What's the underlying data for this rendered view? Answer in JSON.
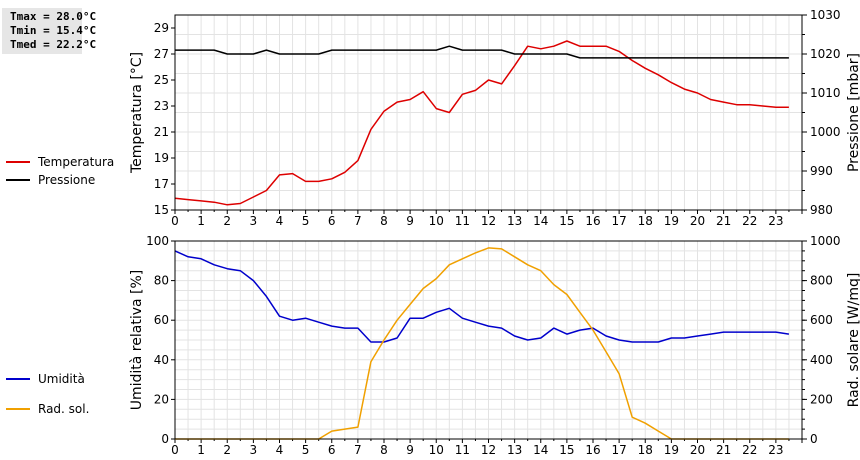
{
  "stats": {
    "tmax": "Tmax = 28.0°C",
    "tmin": "Tmin = 15.4°C",
    "tmed": "Tmed = 22.2°C"
  },
  "chart_data": [
    {
      "type": "line",
      "ylabel_left": "Temperatura [°C]",
      "ylabel_right": "Pressione [mbar]",
      "xticks": [
        "0",
        "1",
        "2",
        "3",
        "4",
        "5",
        "6",
        "7",
        "8",
        "9",
        "10",
        "11",
        "12",
        "13",
        "14",
        "15",
        "16",
        "17",
        "18",
        "19",
        "20",
        "21",
        "22",
        "23"
      ],
      "xlim": [
        0,
        24
      ],
      "ylim_left": [
        15,
        30
      ],
      "ylim_right": [
        980,
        1030
      ],
      "yticks_left": [
        15,
        17,
        19,
        21,
        23,
        25,
        27,
        29
      ],
      "yticks_right": [
        980,
        990,
        1000,
        1010,
        1020,
        1030
      ],
      "grid": true,
      "legend_placement": "left",
      "series": [
        {
          "name": "Temperatura",
          "color": "#dd0000",
          "axis": "left",
          "x": [
            0,
            0.5,
            1,
            1.5,
            2,
            2.5,
            3,
            3.5,
            4,
            4.5,
            5,
            5.5,
            6,
            6.5,
            7,
            7.5,
            8,
            8.5,
            9,
            9.5,
            10,
            10.5,
            11,
            11.5,
            12,
            12.5,
            13,
            13.5,
            14,
            14.5,
            15,
            15.5,
            16,
            16.5,
            17,
            17.5,
            18,
            18.5,
            19,
            19.5,
            20,
            20.5,
            21,
            21.5,
            22,
            22.5,
            23,
            23.5
          ],
          "values": [
            15.9,
            15.8,
            15.7,
            15.6,
            15.4,
            15.5,
            16.0,
            16.5,
            17.7,
            17.8,
            17.2,
            17.2,
            17.4,
            17.9,
            18.8,
            21.2,
            22.6,
            23.3,
            23.5,
            24.1,
            22.8,
            22.5,
            23.9,
            24.2,
            25.0,
            24.7,
            26.1,
            27.6,
            27.4,
            27.6,
            28.0,
            27.6,
            27.6,
            27.6,
            27.2,
            26.5,
            25.9,
            25.4,
            24.8,
            24.3,
            24.0,
            23.5,
            23.3,
            23.1,
            23.1,
            23.0,
            22.9,
            22.9
          ]
        },
        {
          "name": "Pressione",
          "color": "#000000",
          "axis": "right",
          "x": [
            0,
            0.5,
            1,
            1.5,
            2,
            2.5,
            3,
            3.5,
            4,
            4.5,
            5,
            5.5,
            6,
            6.5,
            7,
            7.5,
            8,
            8.5,
            9,
            9.5,
            10,
            10.5,
            11,
            11.5,
            12,
            12.5,
            13,
            13.5,
            14,
            14.5,
            15,
            15.5,
            16,
            16.5,
            17,
            17.5,
            18,
            18.5,
            19,
            19.5,
            20,
            20.5,
            21,
            21.5,
            22,
            22.5,
            23,
            23.5
          ],
          "values": [
            1021,
            1021,
            1021,
            1021,
            1020,
            1020,
            1020,
            1021,
            1020,
            1020,
            1020,
            1020,
            1021,
            1021,
            1021,
            1021,
            1021,
            1021,
            1021,
            1021,
            1021,
            1022,
            1021,
            1021,
            1021,
            1021,
            1020,
            1020,
            1020,
            1020,
            1020,
            1019,
            1019,
            1019,
            1019,
            1019,
            1019,
            1019,
            1019,
            1019,
            1019,
            1019,
            1019,
            1019,
            1019,
            1019,
            1019,
            1019
          ]
        }
      ]
    },
    {
      "type": "line",
      "ylabel_left": "Umidità relativa [%]",
      "ylabel_right": "Rad. solare [W/mq]",
      "xticks": [
        "0",
        "1",
        "2",
        "3",
        "4",
        "5",
        "6",
        "7",
        "8",
        "9",
        "10",
        "11",
        "12",
        "13",
        "14",
        "15",
        "16",
        "17",
        "18",
        "19",
        "20",
        "21",
        "22",
        "23"
      ],
      "xlim": [
        0,
        24
      ],
      "ylim_left": [
        0,
        100
      ],
      "ylim_right": [
        0,
        1000
      ],
      "yticks_left": [
        0,
        20,
        40,
        60,
        80,
        100
      ],
      "yticks_right": [
        0,
        200,
        400,
        600,
        800,
        1000
      ],
      "grid": true,
      "legend_placement": "left",
      "series": [
        {
          "name": "Umidità",
          "color": "#0000cc",
          "axis": "left",
          "x": [
            0,
            0.5,
            1,
            1.5,
            2,
            2.5,
            3,
            3.5,
            4,
            4.5,
            5,
            5.5,
            6,
            6.5,
            7,
            7.5,
            8,
            8.5,
            9,
            9.5,
            10,
            10.5,
            11,
            11.5,
            12,
            12.5,
            13,
            13.5,
            14,
            14.5,
            15,
            15.5,
            16,
            16.5,
            17,
            17.5,
            18,
            18.5,
            19,
            19.5,
            20,
            20.5,
            21,
            21.5,
            22,
            22.5,
            23,
            23.5
          ],
          "values": [
            95,
            92,
            91,
            88,
            86,
            85,
            80,
            72,
            62,
            60,
            61,
            59,
            57,
            56,
            56,
            49,
            49,
            51,
            61,
            61,
            64,
            66,
            61,
            59,
            57,
            56,
            52,
            50,
            51,
            56,
            53,
            55,
            56,
            52,
            50,
            49,
            49,
            49,
            51,
            51,
            52,
            53,
            54,
            54,
            54,
            54,
            54,
            53
          ]
        },
        {
          "name": "Rad. sol.",
          "color": "#f0a000",
          "axis": "right",
          "x": [
            0,
            0.5,
            1,
            1.5,
            2,
            2.5,
            3,
            3.5,
            4,
            4.5,
            5,
            5.5,
            6,
            6.5,
            7,
            7.5,
            8,
            8.5,
            9,
            9.5,
            10,
            10.5,
            11,
            11.5,
            12,
            12.5,
            13,
            13.5,
            14,
            14.5,
            15,
            15.5,
            16,
            16.5,
            17,
            17.5,
            18,
            18.5,
            19,
            19.5,
            20,
            20.5,
            21,
            21.5,
            22,
            22.5,
            23,
            23.5
          ],
          "values": [
            0,
            0,
            0,
            0,
            0,
            0,
            0,
            0,
            0,
            0,
            0,
            0,
            40,
            50,
            60,
            390,
            500,
            600,
            680,
            760,
            810,
            880,
            910,
            940,
            965,
            960,
            920,
            880,
            850,
            780,
            730,
            640,
            550,
            440,
            330,
            110,
            80,
            40,
            0,
            0,
            0,
            0,
            0,
            0,
            0,
            0,
            0,
            0
          ]
        }
      ]
    }
  ]
}
